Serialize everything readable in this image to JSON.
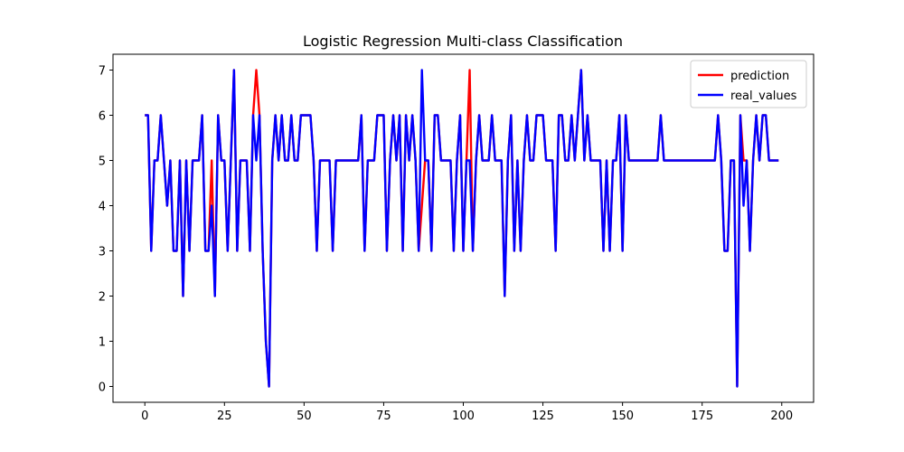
{
  "chart_data": {
    "type": "line",
    "title": "Logistic Regression Multi-class Classification",
    "xlabel": "",
    "ylabel": "",
    "xlim": [
      -10,
      210
    ],
    "ylim": [
      -0.35,
      7.35
    ],
    "xticks": [
      0,
      25,
      50,
      75,
      100,
      125,
      150,
      175,
      200
    ],
    "yticks": [
      0,
      1,
      2,
      3,
      4,
      5,
      6,
      7
    ],
    "legend_position": "top-right",
    "grid": false,
    "series": [
      {
        "name": "prediction",
        "color": "#ff0000",
        "values": [
          6,
          6,
          3,
          5,
          5,
          6,
          5,
          4,
          5,
          3,
          3,
          5,
          2,
          5,
          3,
          5,
          5,
          5,
          6,
          3,
          3,
          5,
          2,
          6,
          5,
          5,
          3,
          5,
          7,
          3,
          5,
          5,
          5,
          3,
          6,
          7,
          6,
          3,
          1,
          0,
          5,
          6,
          5,
          6,
          5,
          5,
          6,
          5,
          5,
          6,
          6,
          6,
          6,
          5,
          3,
          5,
          5,
          5,
          5,
          3,
          5,
          5,
          5,
          5,
          5,
          5,
          5,
          5,
          6,
          3,
          5,
          5,
          5,
          6,
          6,
          6,
          3,
          5,
          6,
          5,
          6,
          3,
          6,
          5,
          6,
          5,
          3,
          4,
          5,
          5,
          3,
          6,
          6,
          5,
          5,
          5,
          5,
          3,
          5,
          6,
          3,
          5,
          7,
          3,
          5,
          6,
          5,
          5,
          5,
          6,
          5,
          5,
          5,
          2,
          5,
          6,
          3,
          5,
          3,
          5,
          6,
          5,
          5,
          6,
          6,
          6,
          5,
          5,
          5,
          3,
          6,
          6,
          5,
          5,
          6,
          5,
          6,
          7,
          5,
          6,
          5,
          5,
          5,
          5,
          3,
          5,
          3,
          5,
          5,
          6,
          3,
          6,
          5,
          5,
          5,
          5,
          5,
          5,
          5,
          5,
          5,
          5,
          6,
          5,
          5,
          5,
          5,
          5,
          5,
          5,
          5,
          5,
          5,
          5,
          5,
          5,
          5,
          5,
          5,
          5,
          6,
          5,
          3,
          3,
          5,
          5,
          0,
          6,
          5,
          5,
          3,
          5,
          6,
          5,
          6,
          6,
          5,
          5,
          5,
          5
        ]
      },
      {
        "name": "real_values",
        "color": "#0000ff",
        "values": [
          6,
          6,
          3,
          5,
          5,
          6,
          5,
          4,
          5,
          3,
          3,
          5,
          2,
          5,
          3,
          5,
          5,
          5,
          6,
          3,
          3,
          4,
          2,
          6,
          5,
          5,
          3,
          5,
          7,
          3,
          5,
          5,
          5,
          3,
          6,
          5,
          6,
          3,
          1,
          0,
          5,
          6,
          5,
          6,
          5,
          5,
          6,
          5,
          5,
          6,
          6,
          6,
          6,
          5,
          3,
          5,
          5,
          5,
          5,
          3,
          5,
          5,
          5,
          5,
          5,
          5,
          5,
          5,
          6,
          3,
          5,
          5,
          5,
          6,
          6,
          6,
          3,
          5,
          6,
          5,
          6,
          3,
          6,
          5,
          6,
          5,
          3,
          7,
          5,
          5,
          3,
          6,
          6,
          5,
          5,
          5,
          5,
          3,
          5,
          6,
          3,
          5,
          5,
          3,
          5,
          6,
          5,
          5,
          5,
          6,
          5,
          5,
          5,
          2,
          5,
          6,
          3,
          5,
          3,
          5,
          6,
          5,
          5,
          6,
          6,
          6,
          5,
          5,
          5,
          3,
          6,
          6,
          5,
          5,
          6,
          5,
          6,
          7,
          5,
          6,
          5,
          5,
          5,
          5,
          3,
          5,
          3,
          5,
          5,
          6,
          3,
          6,
          5,
          5,
          5,
          5,
          5,
          5,
          5,
          5,
          5,
          5,
          6,
          5,
          5,
          5,
          5,
          5,
          5,
          5,
          5,
          5,
          5,
          5,
          5,
          5,
          5,
          5,
          5,
          5,
          6,
          5,
          3,
          3,
          5,
          5,
          0,
          6,
          4,
          5,
          3,
          5,
          6,
          5,
          6,
          6,
          5,
          5,
          5,
          5
        ]
      }
    ]
  }
}
